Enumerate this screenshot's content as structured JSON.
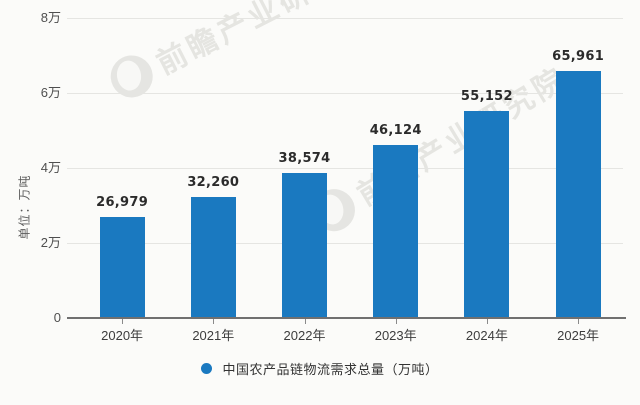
{
  "chart_data": {
    "type": "bar",
    "categories": [
      "2020年",
      "2021年",
      "2022年",
      "2023年",
      "2024年",
      "2025年"
    ],
    "values": [
      26979,
      32260,
      38574,
      46124,
      55152,
      65961
    ],
    "value_labels": [
      "26,979",
      "32,260",
      "38,574",
      "46,124",
      "55,152",
      "65,961"
    ],
    "ylabel": "单位：万吨",
    "ylim": [
      0,
      80000
    ],
    "y_ticks": [
      0,
      20000,
      40000,
      60000,
      80000
    ],
    "y_tick_labels": [
      "0",
      "2万",
      "4万",
      "6万",
      "8万"
    ],
    "grid": true,
    "bar_color": "#1a79c0",
    "legend": {
      "position": "bottom",
      "items": [
        {
          "label": "中国农产品链物流需求总量（万吨）",
          "color": "#1a79c0"
        }
      ]
    }
  },
  "watermark": {
    "text": "前瞻产业研究院"
  }
}
